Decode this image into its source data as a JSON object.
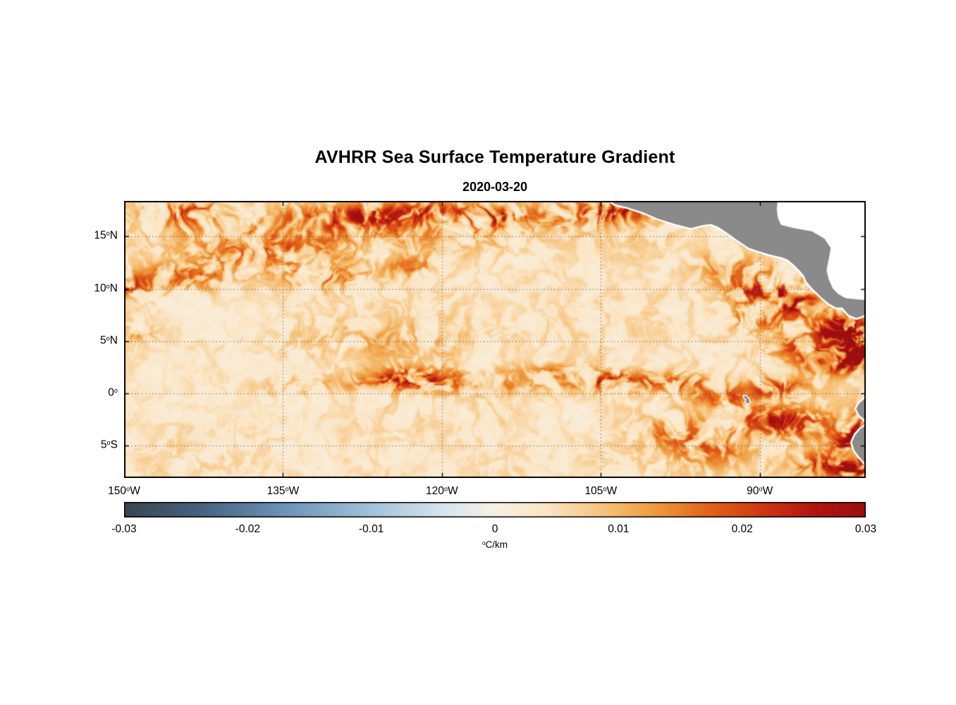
{
  "page": {
    "background": "#ffffff"
  },
  "chart_data": {
    "type": "heatmap",
    "title": "AVHRR Sea Surface Temperature Gradient",
    "subtitle": "2020-03-20",
    "geo": {
      "lon_range": [
        -150,
        -80
      ],
      "lat_range": [
        -8.1,
        18.4
      ]
    },
    "x_axis": {
      "ticks": [
        {
          "value": -150,
          "label": "150°W"
        },
        {
          "value": -135,
          "label": "135°W"
        },
        {
          "value": -120,
          "label": "120°W"
        },
        {
          "value": -105,
          "label": "105°W"
        },
        {
          "value": -90,
          "label": "90°W"
        }
      ]
    },
    "y_axis": {
      "ticks": [
        {
          "value": 15,
          "label": "15°N"
        },
        {
          "value": 10,
          "label": "10°N"
        },
        {
          "value": 5,
          "label": "5°N"
        },
        {
          "value": 0,
          "label": "0°"
        },
        {
          "value": -5,
          "label": "5°S"
        }
      ]
    },
    "grid": {
      "enabled": true,
      "style": "dotted",
      "color": "#55556a"
    },
    "value_range": [
      -0.03,
      0.03
    ],
    "colorbar": {
      "label": "°C/km",
      "orientation": "horizontal",
      "ticks": [
        {
          "value": -0.03,
          "label": "-0.03"
        },
        {
          "value": -0.02,
          "label": "-0.02"
        },
        {
          "value": -0.01,
          "label": "-0.01"
        },
        {
          "value": 0,
          "label": "0"
        },
        {
          "value": 0.01,
          "label": "0.01"
        },
        {
          "value": 0.02,
          "label": "0.02"
        },
        {
          "value": 0.03,
          "label": "0.03"
        }
      ]
    },
    "colormap": [
      {
        "v": -0.03,
        "c": "#3a464e"
      },
      {
        "v": -0.024,
        "c": "#47617f"
      },
      {
        "v": -0.017,
        "c": "#6d93b8"
      },
      {
        "v": -0.01,
        "c": "#a3c2da"
      },
      {
        "v": -0.004,
        "c": "#d8e5ee"
      },
      {
        "v": 0.0,
        "c": "#f7f1e4"
      },
      {
        "v": 0.004,
        "c": "#fbe6c6"
      },
      {
        "v": 0.009,
        "c": "#f6c178"
      },
      {
        "v": 0.013,
        "c": "#ef9a3e"
      },
      {
        "v": 0.017,
        "c": "#e4661b"
      },
      {
        "v": 0.022,
        "c": "#cd3414"
      },
      {
        "v": 0.026,
        "c": "#b01511"
      },
      {
        "v": 0.03,
        "c": "#9d0e10"
      }
    ],
    "land": {
      "fill": "#8a8a8a",
      "coast_halo": "#ffffff"
    },
    "no_data_color": "#ffffff",
    "noise": {
      "seed": 11,
      "warp": 2.1,
      "base_amp": 0.005,
      "freq": 0.5,
      "ridge_width": 0.22
    },
    "features": [
      [
        -144,
        17.2,
        4,
        1.3,
        0.018
      ],
      [
        -128.5,
        17.0,
        4.5,
        1.2,
        0.024
      ],
      [
        -121,
        17.5,
        3,
        1.0,
        0.026
      ],
      [
        -114.5,
        17.0,
        3,
        1.0,
        0.02
      ],
      [
        -108,
        17.2,
        3.5,
        1.2,
        0.024
      ],
      [
        -103,
        17.5,
        2.5,
        1.0,
        0.022
      ],
      [
        -127,
        15.8,
        22,
        2.2,
        0.01
      ],
      [
        -137,
        13.3,
        7,
        1.6,
        0.013
      ],
      [
        -145.5,
        11.0,
        4.5,
        1.4,
        0.024
      ],
      [
        -150,
        10.3,
        2.5,
        1.0,
        0.022
      ],
      [
        -131,
        11.0,
        4,
        1.2,
        0.012
      ],
      [
        -122.5,
        12.0,
        3,
        1.0,
        0.011
      ],
      [
        -120,
        0.9,
        18,
        1.0,
        0.01
      ],
      [
        -123,
        1.6,
        4,
        0.9,
        0.015
      ],
      [
        -134,
        0.6,
        2,
        0.8,
        0.013
      ],
      [
        -104.5,
        1.2,
        4.5,
        1.0,
        0.019
      ],
      [
        -97.5,
        1.0,
        3,
        1.0,
        0.016
      ],
      [
        -110.5,
        2.0,
        3,
        0.9,
        0.012
      ],
      [
        -148.8,
        5.8,
        1.6,
        0.8,
        0.015
      ],
      [
        -127,
        5.0,
        10,
        2.0,
        0.006
      ],
      [
        -88.0,
        10.3,
        2.2,
        1.3,
        0.028
      ],
      [
        -86.5,
        8.8,
        2.0,
        1.5,
        0.03
      ],
      [
        -91.0,
        9.5,
        2.0,
        1.5,
        0.02
      ],
      [
        -92.5,
        12.0,
        3.0,
        1.5,
        0.014
      ],
      [
        -90.5,
        7.0,
        2.5,
        1.0,
        0.018
      ],
      [
        -82.5,
        6.0,
        2.2,
        1.5,
        0.03
      ],
      [
        -80.6,
        4.6,
        1.8,
        1.8,
        0.03
      ],
      [
        -83.0,
        3.0,
        2.8,
        1.2,
        0.024
      ],
      [
        -86.5,
        4.5,
        2.5,
        1.5,
        0.014
      ],
      [
        -93.5,
        -0.4,
        3,
        1.0,
        0.014
      ],
      [
        -90.0,
        -2.6,
        3,
        1.3,
        0.018
      ],
      [
        -94.5,
        -5.0,
        4,
        2.0,
        0.012
      ],
      [
        -86.0,
        -3.0,
        3,
        1.5,
        0.016
      ],
      [
        -81.2,
        -4.5,
        1.6,
        2.2,
        0.03
      ],
      [
        -80.6,
        -7.2,
        2.2,
        1.6,
        0.03
      ],
      [
        -84.5,
        -6.8,
        2.5,
        1.2,
        0.015
      ],
      [
        -99,
        -3.5,
        4,
        1.8,
        0.009
      ],
      [
        -88.5,
        0.5,
        3,
        1.0,
        0.016
      ]
    ],
    "no_data_polygons": [
      {
        "name": "caribbean-sea",
        "points": [
          [
            -88.3,
            18.6
          ],
          [
            -88.4,
            17.6
          ],
          [
            -88.3,
            16.8
          ],
          [
            -88.0,
            16.1
          ],
          [
            -86.8,
            15.8
          ],
          [
            -85.1,
            15.5
          ],
          [
            -83.9,
            14.8
          ],
          [
            -83.3,
            13.9
          ],
          [
            -83.5,
            12.8
          ],
          [
            -83.7,
            11.8
          ],
          [
            -83.5,
            10.9
          ],
          [
            -83.1,
            10.0
          ],
          [
            -82.6,
            9.5
          ],
          [
            -81.9,
            9.1
          ],
          [
            -80.9,
            9.0
          ],
          [
            -79.9,
            8.9
          ],
          [
            -79.0,
            8.6
          ],
          [
            -78.2,
            7.6
          ],
          [
            -78.5,
            6.9
          ],
          [
            -77.5,
            6.9
          ],
          [
            -77.5,
            18.6
          ]
        ]
      }
    ],
    "land_polygons": [
      {
        "name": "central-america",
        "halo": 5,
        "points": [
          [
            -104.3,
            18.6
          ],
          [
            -103.7,
            18.1
          ],
          [
            -102.5,
            17.8
          ],
          [
            -101.0,
            17.3
          ],
          [
            -99.6,
            16.7
          ],
          [
            -98.0,
            16.2
          ],
          [
            -96.5,
            15.8
          ],
          [
            -95.3,
            16.1
          ],
          [
            -94.6,
            16.2
          ],
          [
            -93.9,
            15.9
          ],
          [
            -93.0,
            15.3
          ],
          [
            -92.2,
            14.7
          ],
          [
            -91.0,
            13.9
          ],
          [
            -89.8,
            13.5
          ],
          [
            -88.8,
            13.2
          ],
          [
            -87.9,
            13.0
          ],
          [
            -87.4,
            12.8
          ],
          [
            -86.9,
            12.4
          ],
          [
            -86.2,
            11.7
          ],
          [
            -85.8,
            11.2
          ],
          [
            -85.6,
            10.7
          ],
          [
            -85.1,
            10.1
          ],
          [
            -84.8,
            9.8
          ],
          [
            -84.2,
            9.2
          ],
          [
            -83.5,
            8.6
          ],
          [
            -82.8,
            8.2
          ],
          [
            -82.2,
            8.2
          ],
          [
            -81.6,
            7.5
          ],
          [
            -80.9,
            7.2
          ],
          [
            -80.3,
            7.4
          ],
          [
            -79.8,
            7.8
          ],
          [
            -79.2,
            7.2
          ],
          [
            -78.5,
            6.9
          ],
          [
            -78.2,
            7.6
          ],
          [
            -79.0,
            8.6
          ],
          [
            -79.9,
            8.9
          ],
          [
            -80.9,
            9.0
          ],
          [
            -81.9,
            9.1
          ],
          [
            -82.6,
            9.5
          ],
          [
            -83.1,
            10.0
          ],
          [
            -83.5,
            10.9
          ],
          [
            -83.7,
            11.8
          ],
          [
            -83.5,
            12.8
          ],
          [
            -83.3,
            13.9
          ],
          [
            -83.9,
            14.8
          ],
          [
            -85.1,
            15.5
          ],
          [
            -86.8,
            15.8
          ],
          [
            -88.0,
            16.1
          ],
          [
            -88.3,
            16.8
          ],
          [
            -88.4,
            17.6
          ],
          [
            -88.3,
            18.6
          ]
        ]
      },
      {
        "name": "south-america",
        "halo": 5,
        "points": [
          [
            -79.9,
            0.0
          ],
          [
            -80.15,
            -0.55
          ],
          [
            -80.65,
            -1.0
          ],
          [
            -80.9,
            -1.5
          ],
          [
            -80.6,
            -2.1
          ],
          [
            -80.1,
            -2.5
          ],
          [
            -79.9,
            -3.0
          ],
          [
            -80.5,
            -3.4
          ],
          [
            -81.0,
            -4.0
          ],
          [
            -81.3,
            -4.7
          ],
          [
            -81.1,
            -5.4
          ],
          [
            -80.6,
            -6.1
          ],
          [
            -79.9,
            -6.9
          ],
          [
            -79.3,
            -7.6
          ],
          [
            -78.9,
            -8.4
          ],
          [
            -77.5,
            -8.4
          ],
          [
            -77.5,
            0.0
          ]
        ]
      },
      {
        "name": "galapagos-islands",
        "halo": 3,
        "points": [
          [
            -91.55,
            -0.25
          ],
          [
            -91.25,
            -0.3
          ],
          [
            -91.05,
            -0.55
          ],
          [
            -90.95,
            -0.85
          ],
          [
            -91.15,
            -1.0
          ],
          [
            -91.35,
            -0.8
          ],
          [
            -91.25,
            -0.6
          ],
          [
            -91.45,
            -0.45
          ]
        ]
      }
    ]
  }
}
